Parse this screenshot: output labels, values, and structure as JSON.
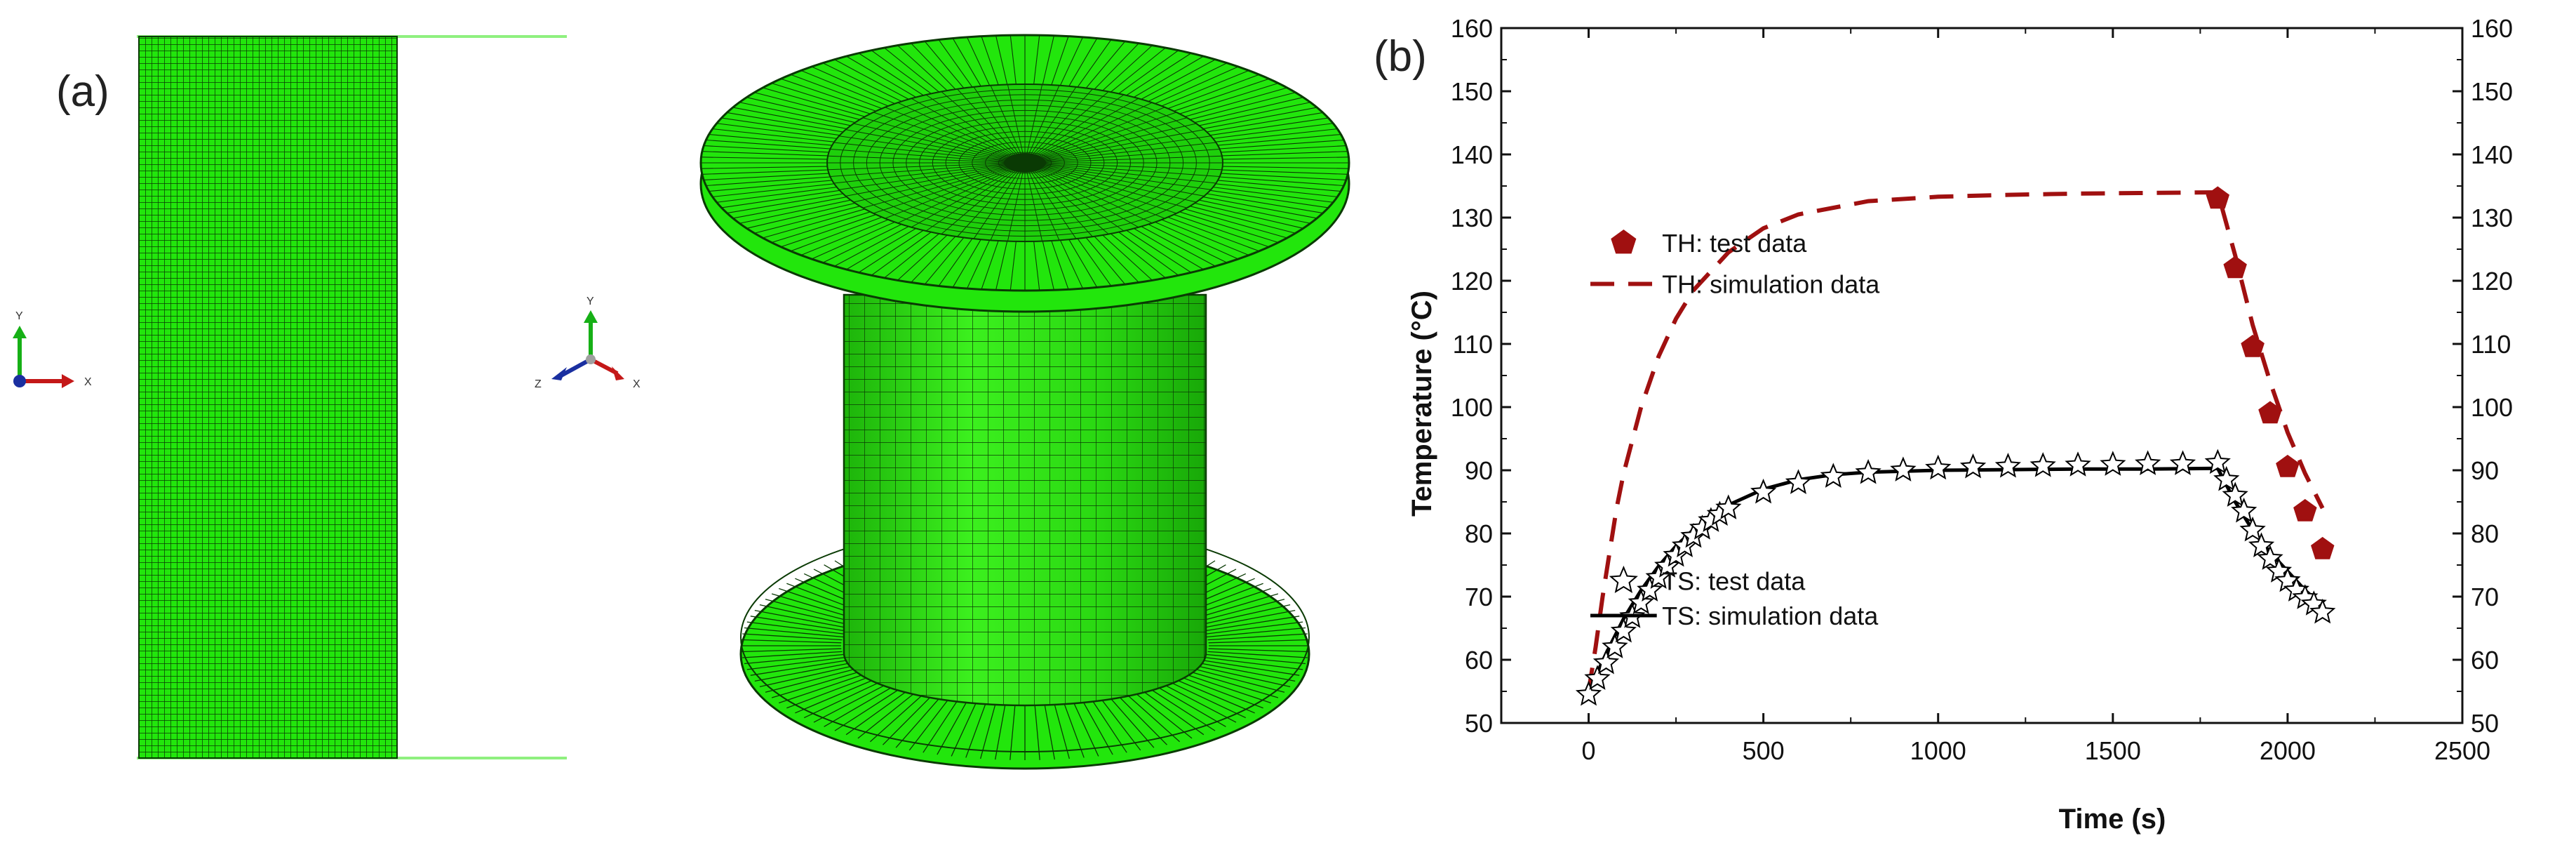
{
  "panel_a": {
    "label": "(a)",
    "mesh_color": "#22e60c",
    "triad_2d": {
      "y": "Y",
      "x": "X"
    },
    "triad_3d": {
      "y": "Y",
      "z": "Z",
      "x": "X"
    }
  },
  "panel_b": {
    "label": "(b)"
  },
  "chart_data": {
    "type": "line",
    "xlabel": "Time (s)",
    "ylabel": "Temperature (°C)",
    "xlim": [
      -250,
      2500
    ],
    "ylim": [
      50,
      160
    ],
    "x_ticks": [
      0,
      500,
      1000,
      1500,
      2000,
      2500
    ],
    "y_ticks": [
      50,
      60,
      70,
      80,
      90,
      100,
      110,
      120,
      130,
      140,
      150,
      160
    ],
    "right_axis_duplicate": true,
    "grid": false,
    "legend": [
      {
        "name": "TH: test data",
        "marker": "pentagon",
        "color": "#a01010"
      },
      {
        "name": "TH: simulation data",
        "line": "dash",
        "color": "#a01010"
      },
      {
        "name": "TS:  test data",
        "marker": "star",
        "color": "#000000"
      },
      {
        "name": "TS: simulation data",
        "line": "solid",
        "color": "#000000"
      }
    ],
    "series": [
      {
        "name": "TH: test data",
        "style": "pentagon",
        "color": "#a01010",
        "x": [
          1800,
          1850,
          1900,
          1950,
          2000,
          2050,
          2100
        ],
        "y": [
          133,
          122,
          109.5,
          99,
          90.5,
          83.5,
          77.5
        ]
      },
      {
        "name": "TH: simulation data",
        "style": "dash",
        "color": "#a01010",
        "x": [
          0,
          20,
          40,
          60,
          80,
          100,
          150,
          200,
          250,
          300,
          400,
          500,
          600,
          800,
          1000,
          1200,
          1400,
          1600,
          1800,
          1850,
          1900,
          1950,
          2000,
          2050,
          2100
        ],
        "y": [
          55,
          62,
          70,
          77,
          84,
          89.5,
          100,
          108,
          114,
          118.5,
          124.5,
          128.3,
          130.5,
          132.6,
          133.3,
          133.6,
          133.8,
          133.9,
          134,
          124,
          113,
          104,
          96,
          89.5,
          84
        ]
      },
      {
        "name": "TS:  test data",
        "style": "star",
        "color": "#000000",
        "x": [
          0,
          25,
          50,
          75,
          100,
          125,
          150,
          175,
          200,
          225,
          250,
          275,
          300,
          325,
          350,
          375,
          400,
          500,
          600,
          700,
          800,
          900,
          1000,
          1100,
          1200,
          1300,
          1400,
          1500,
          1600,
          1700,
          1800,
          1825,
          1850,
          1875,
          1900,
          1925,
          1950,
          1975,
          2000,
          2025,
          2050,
          2075,
          2100
        ],
        "y": [
          54.5,
          57,
          59.5,
          62,
          64.5,
          66.8,
          69,
          71,
          73,
          74.8,
          76.5,
          78,
          79.5,
          80.8,
          82,
          83,
          84,
          86.5,
          88,
          89,
          89.6,
          90,
          90.3,
          90.5,
          90.6,
          90.7,
          90.8,
          90.9,
          91,
          91,
          91.2,
          88.5,
          86,
          83.5,
          80.5,
          78,
          76,
          74,
          72.5,
          71,
          69.8,
          68.8,
          67.5
        ]
      },
      {
        "name": "TS: simulation data",
        "style": "solid",
        "color": "#000000",
        "x": [
          0,
          50,
          100,
          150,
          200,
          250,
          300,
          400,
          500,
          600,
          700,
          800,
          1000,
          1200,
          1400,
          1600,
          1800,
          1850,
          1900,
          1950,
          2000,
          2050,
          2100
        ],
        "y": [
          55,
          61,
          66.5,
          71,
          74.8,
          78,
          80.6,
          84.5,
          87,
          88.5,
          89.3,
          89.7,
          90,
          90.1,
          90.2,
          90.2,
          90.3,
          85,
          80.5,
          77,
          74,
          71,
          68.5
        ]
      }
    ]
  }
}
